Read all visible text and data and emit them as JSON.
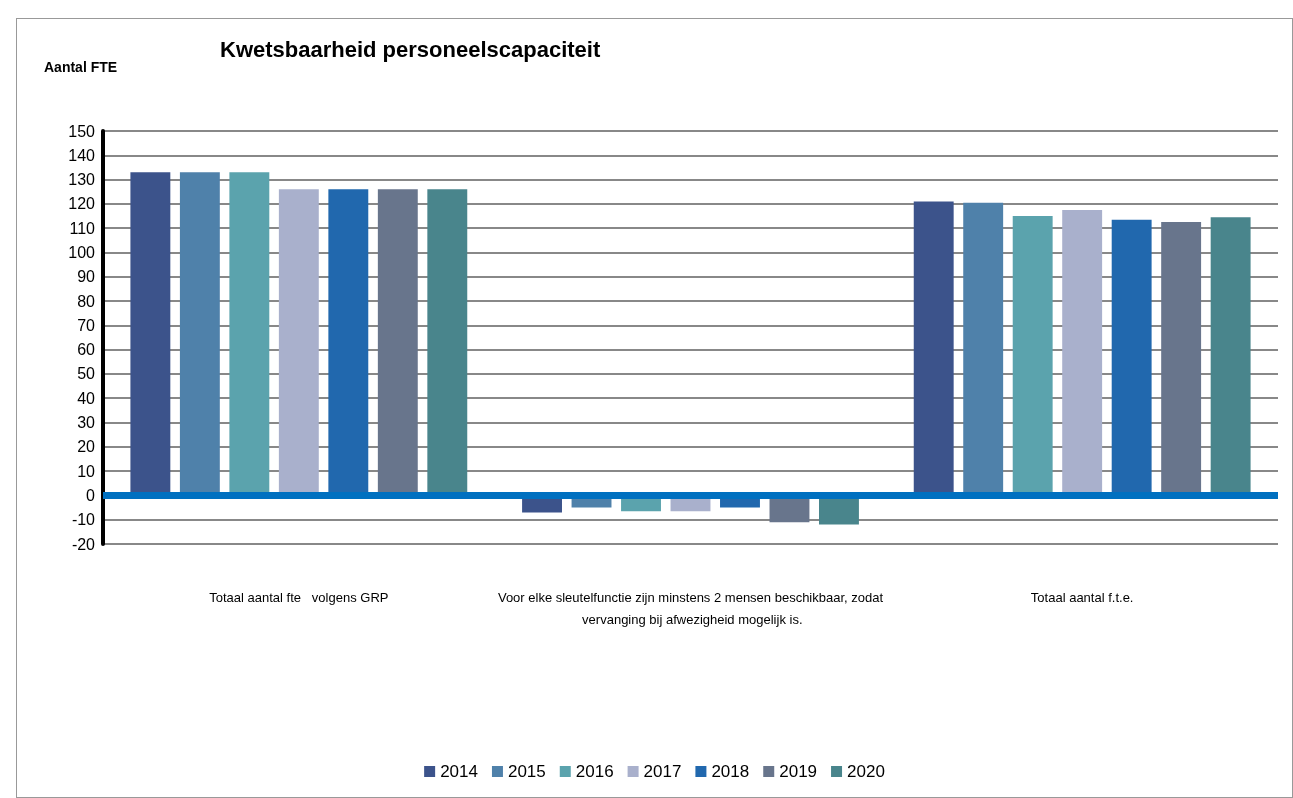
{
  "chart_data": {
    "type": "bar",
    "title": "Kwetsbaarheid personeelscapaciteit",
    "ylabel": "Aantal FTE",
    "categories": [
      "Totaal aantal fte   volgens GRP",
      "Voor elke sleutelfunctie zijn minstens 2 mensen beschikbaar, zodat vervanging bij afwezigheid mogelijk is.",
      "Totaal aantal f.t.e."
    ],
    "series": [
      {
        "name": "2014",
        "color": "#3c538b",
        "values": [
          133,
          -7,
          121
        ]
      },
      {
        "name": "2015",
        "color": "#4f81aa",
        "values": [
          133,
          -5,
          120.5
        ]
      },
      {
        "name": "2016",
        "color": "#5ba3ad",
        "values": [
          133,
          -6.5,
          115
        ]
      },
      {
        "name": "2017",
        "color": "#a9b0cc",
        "values": [
          126,
          -6.5,
          117.5
        ]
      },
      {
        "name": "2018",
        "color": "#2168ae",
        "values": [
          126,
          -5,
          113.5
        ]
      },
      {
        "name": "2019",
        "color": "#68758c",
        "values": [
          126,
          -11,
          112.5
        ]
      },
      {
        "name": "2020",
        "color": "#49858c",
        "values": [
          126,
          -12,
          114.5
        ]
      }
    ],
    "ylim": [
      -20,
      150
    ],
    "yticks": [
      -20,
      -10,
      0,
      10,
      20,
      30,
      40,
      50,
      60,
      70,
      80,
      90,
      100,
      110,
      120,
      130,
      140,
      150
    ],
    "ref_lines": [
      {
        "axis": "y",
        "value": 0,
        "color": "#0070c0"
      }
    ],
    "grid": "y",
    "legend": "bottom"
  }
}
